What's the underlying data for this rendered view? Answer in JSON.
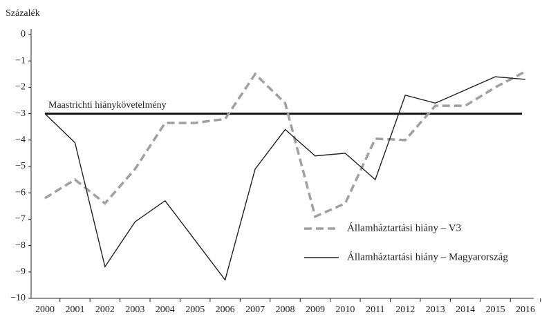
{
  "chart_data": {
    "type": "line",
    "y_axis_label": "Százalék",
    "categories": [
      "2000",
      "2001",
      "2002",
      "2003",
      "2004",
      "2005",
      "2006",
      "2007",
      "2008",
      "2009",
      "2010",
      "2011",
      "2012",
      "2013",
      "2014",
      "2015",
      "2016"
    ],
    "series": [
      {
        "name": "Államháztartási hiány – V3",
        "color": "#a0a0a0",
        "dashed": true,
        "values": [
          -6.2,
          -5.5,
          -6.4,
          -5.1,
          -3.35,
          -3.35,
          -3.2,
          -1.5,
          -2.6,
          -6.9,
          -6.4,
          -3.95,
          -4.0,
          -2.7,
          -2.7,
          -2.0,
          -1.4
        ]
      },
      {
        "name": "Államháztartási hiány – Magyarország",
        "color": "#222222",
        "dashed": false,
        "values": [
          -3.0,
          -4.1,
          -8.8,
          -7.1,
          -6.3,
          -7.8,
          -9.3,
          -5.1,
          -3.6,
          -4.6,
          -4.5,
          -5.5,
          -2.3,
          -2.6,
          -2.1,
          -1.6,
          -1.7
        ]
      }
    ],
    "reference_line": {
      "label": "Maastrichti hiánykövetelmény",
      "value": -3,
      "color": "#111111"
    },
    "ylim": [
      -10,
      0
    ],
    "yticks": [
      0,
      {
        "value": -1,
        "label": "−1"
      },
      {
        "value": -2,
        "label": "−2"
      },
      {
        "value": -3,
        "label": "−3"
      },
      {
        "value": -4,
        "label": "−4"
      },
      {
        "value": -5,
        "label": "−5"
      },
      {
        "value": -6,
        "label": "−6"
      },
      {
        "value": -7,
        "label": "−7"
      },
      {
        "value": -8,
        "label": "−8"
      },
      {
        "value": -9,
        "label": "−9"
      },
      {
        "value": -10,
        "label": "−10"
      }
    ],
    "legend": "lower right"
  }
}
